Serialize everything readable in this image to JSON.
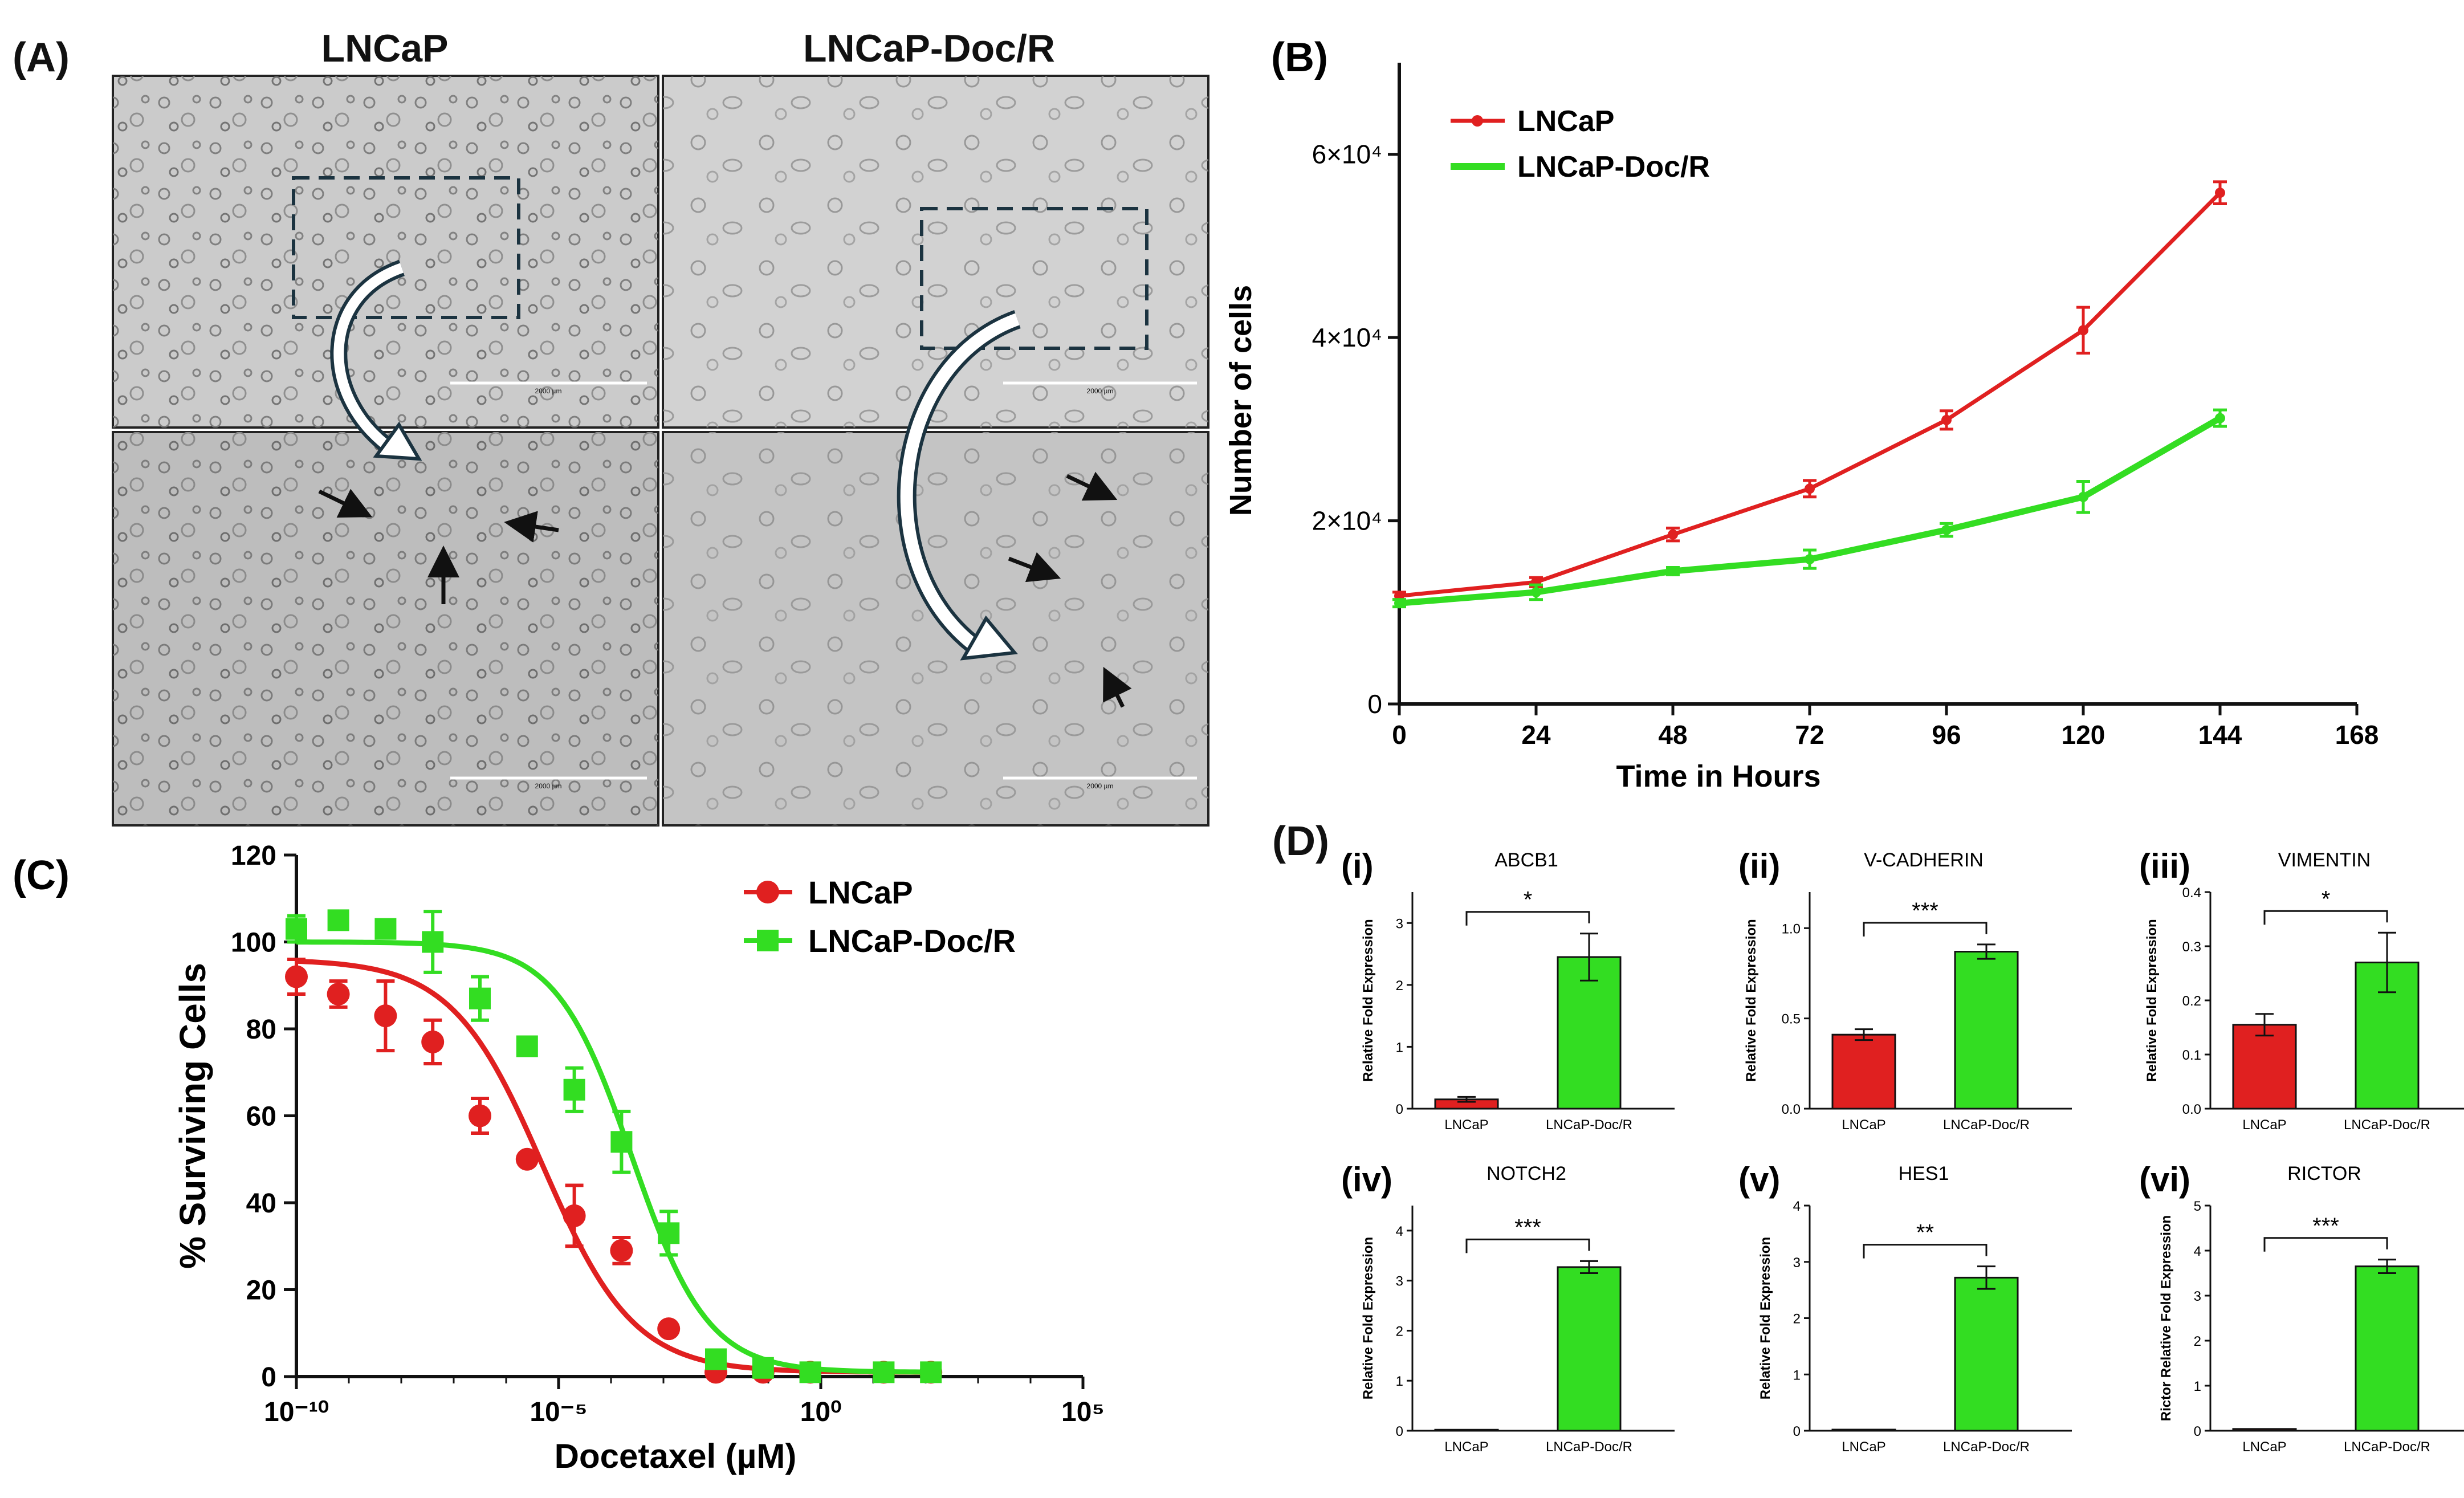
{
  "colors": {
    "lncap": "#e02020",
    "docr": "#33dd22",
    "axis": "#111111",
    "frame": "#222222",
    "micro_bg": "#c9c9c9",
    "arrow": "#1b3340"
  },
  "panelA": {
    "letter": "(A)",
    "col_titles": [
      "LNCaP",
      "LNCaP-Doc/R"
    ],
    "scale_labels": [
      "2000 µm",
      "2000 µm",
      "2000 µm",
      "2000 µm"
    ]
  },
  "chart_data": [
    {
      "id": "B",
      "letter": "(B)",
      "type": "line",
      "xlabel": "Time in Hours",
      "ylabel": "Number of cells",
      "xlim": [
        0,
        168
      ],
      "ylim": [
        0,
        70000
      ],
      "xticks": [
        0,
        24,
        48,
        72,
        96,
        120,
        144,
        168
      ],
      "xtick_labels": [
        "0",
        "24",
        "48",
        "72",
        "96",
        "120",
        "144",
        "168"
      ],
      "yticks": [
        0,
        20000,
        40000,
        60000
      ],
      "ytick_labels": [
        "0",
        "2×10⁴",
        "4×10⁴",
        "6×10⁴"
      ],
      "x": [
        0,
        24,
        48,
        72,
        96,
        120,
        144
      ],
      "series": [
        {
          "name": "LNCaP",
          "color": "#e02020",
          "values": [
            11800,
            13300,
            18500,
            23500,
            31000,
            40800,
            55800
          ],
          "err": [
            400,
            500,
            700,
            900,
            1000,
            2500,
            1200
          ]
        },
        {
          "name": "LNCaP-Doc/R",
          "color": "#33dd22",
          "values": [
            11000,
            12200,
            14500,
            15800,
            19000,
            22600,
            31200
          ],
          "err": [
            400,
            800,
            400,
            1000,
            700,
            1700,
            900
          ]
        }
      ]
    },
    {
      "id": "C",
      "letter": "(C)",
      "type": "scatter",
      "xlabel": "Docetaxel (µM)",
      "ylabel": "% Surviving  Cells",
      "xscale": "log10",
      "xlim_exp": [
        -10,
        5
      ],
      "ylim": [
        0,
        120
      ],
      "xtick_exps": [
        -10,
        -5,
        0,
        5
      ],
      "xtick_labels": [
        "10⁻¹⁰",
        "10⁻⁵",
        "10⁰",
        "10⁵"
      ],
      "yticks": [
        0,
        20,
        40,
        60,
        80,
        100,
        120
      ],
      "series": [
        {
          "name": "LNCaP",
          "color": "#e02020",
          "marker": "circle",
          "x_exp": [
            -10,
            -9.2,
            -8.3,
            -7.4,
            -6.5,
            -5.6,
            -4.7,
            -3.8,
            -2.9,
            -2.0,
            -1.1,
            -0.2,
            1.2,
            2.1
          ],
          "values": [
            92,
            88,
            83,
            77,
            60,
            50,
            37,
            29,
            11,
            1,
            1,
            1,
            1,
            1
          ],
          "err": [
            4,
            3,
            8,
            5,
            4,
            0,
            7,
            3,
            0,
            0,
            0,
            0,
            0,
            0
          ],
          "fit": {
            "top": 96,
            "bottom": 1,
            "log_ic50": -5.3,
            "hill": 0.5
          }
        },
        {
          "name": "LNCaP-Doc/R",
          "color": "#33dd22",
          "marker": "square",
          "x_exp": [
            -10,
            -9.2,
            -8.3,
            -7.4,
            -6.5,
            -5.6,
            -4.7,
            -3.8,
            -2.9,
            -2.0,
            -1.1,
            -0.2,
            1.2,
            2.1
          ],
          "values": [
            103,
            105,
            103,
            100,
            87,
            76,
            66,
            54,
            33,
            4,
            2,
            1,
            1,
            1
          ],
          "err": [
            3,
            2,
            2,
            7,
            5,
            0,
            5,
            7,
            5,
            0,
            0,
            0,
            0,
            0
          ],
          "fit": {
            "top": 100,
            "bottom": 1,
            "log_ic50": -3.6,
            "hill": 0.6
          }
        }
      ]
    },
    {
      "id": "D-i",
      "numeral": "(i)",
      "type": "bar",
      "title": "ABCB1",
      "ylabel": "Relative Fold  Expression",
      "categories": [
        "LNCaP",
        "LNCaP-Doc/R"
      ],
      "values": [
        0.15,
        2.45
      ],
      "err": [
        0.04,
        0.38
      ],
      "ylim": [
        0,
        3.5
      ],
      "yticks": [
        0,
        1,
        2,
        3
      ],
      "ytick_labels": [
        "0",
        "1",
        "2",
        "3"
      ],
      "sig": "*"
    },
    {
      "id": "D-ii",
      "numeral": "(ii)",
      "type": "bar",
      "title": "V-CADHERIN",
      "ylabel": "Relative Fold  Expression",
      "categories": [
        "LNCaP",
        "LNCaP-Doc/R"
      ],
      "values": [
        0.41,
        0.87
      ],
      "err": [
        0.03,
        0.04
      ],
      "ylim": [
        0,
        1.2
      ],
      "yticks": [
        0,
        0.5,
        1.0
      ],
      "ytick_labels": [
        "0.0",
        "0.5",
        "1.0"
      ],
      "sig": "***"
    },
    {
      "id": "D-iii",
      "numeral": "(iii)",
      "type": "bar",
      "title": "VIMENTIN",
      "ylabel": "Relative Fold Expression",
      "categories": [
        "LNCaP",
        "LNCaP-Doc/R"
      ],
      "values": [
        0.155,
        0.27
      ],
      "err": [
        0.02,
        0.055
      ],
      "ylim": [
        0,
        0.4
      ],
      "yticks": [
        0,
        0.1,
        0.2,
        0.3,
        0.4
      ],
      "ytick_labels": [
        "0.0",
        "0.1",
        "0.2",
        "0.3",
        "0.4"
      ],
      "sig": "*"
    },
    {
      "id": "D-iv",
      "numeral": "(iv)",
      "type": "bar",
      "title": "NOTCH2",
      "ylabel": "Relative Fold Expression",
      "categories": [
        "LNCaP",
        "LNCaP-Doc/R"
      ],
      "values": [
        0.02,
        3.27
      ],
      "err": [
        0.0,
        0.12
      ],
      "ylim": [
        0,
        4.5
      ],
      "yticks": [
        0,
        1,
        2,
        3,
        4
      ],
      "ytick_labels": [
        "0",
        "1",
        "2",
        "3",
        "4"
      ],
      "sig": "***"
    },
    {
      "id": "D-v",
      "numeral": "(v)",
      "type": "bar",
      "title": "HES1",
      "ylabel": "Relative Fold Expression",
      "categories": [
        "LNCaP",
        "LNCaP-Doc/R"
      ],
      "values": [
        0.02,
        2.72
      ],
      "err": [
        0.0,
        0.2
      ],
      "ylim": [
        0,
        4
      ],
      "yticks": [
        0,
        1,
        2,
        3,
        4
      ],
      "ytick_labels": [
        "0",
        "1",
        "2",
        "3",
        "4"
      ],
      "sig": "**"
    },
    {
      "id": "D-vi",
      "numeral": "(vi)",
      "type": "bar",
      "title": "RICTOR",
      "ylabel": "Rictor Relative Fold  Expression",
      "categories": [
        "LNCaP",
        "LNCaP-Doc/R"
      ],
      "values": [
        0.04,
        3.65
      ],
      "err": [
        0.0,
        0.15
      ],
      "ylim": [
        0,
        5
      ],
      "yticks": [
        0,
        1,
        2,
        3,
        4,
        5
      ],
      "ytick_labels": [
        "0",
        "1",
        "2",
        "3",
        "4",
        "5"
      ],
      "sig": "***"
    }
  ],
  "panelD_letter": "(D)"
}
